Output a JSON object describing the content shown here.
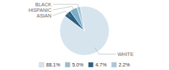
{
  "chart_data": {
    "type": "pie",
    "categories": [
      "WHITE",
      "ASIAN",
      "HISPANIC",
      "BLACK"
    ],
    "values": [
      88.1,
      4.7,
      5.0,
      2.2
    ],
    "colors": [
      "#d6e4ee",
      "#2b6080",
      "#7aaec8",
      "#a8c8d8"
    ],
    "legend": "bottom",
    "legend_labels": [
      "88.1%",
      "5.0%",
      "4.7%",
      "2.2%"
    ],
    "legend_colors": [
      "#d6e4ee",
      "#9bbdce",
      "#2b6080",
      "#a8c8d8"
    ]
  }
}
